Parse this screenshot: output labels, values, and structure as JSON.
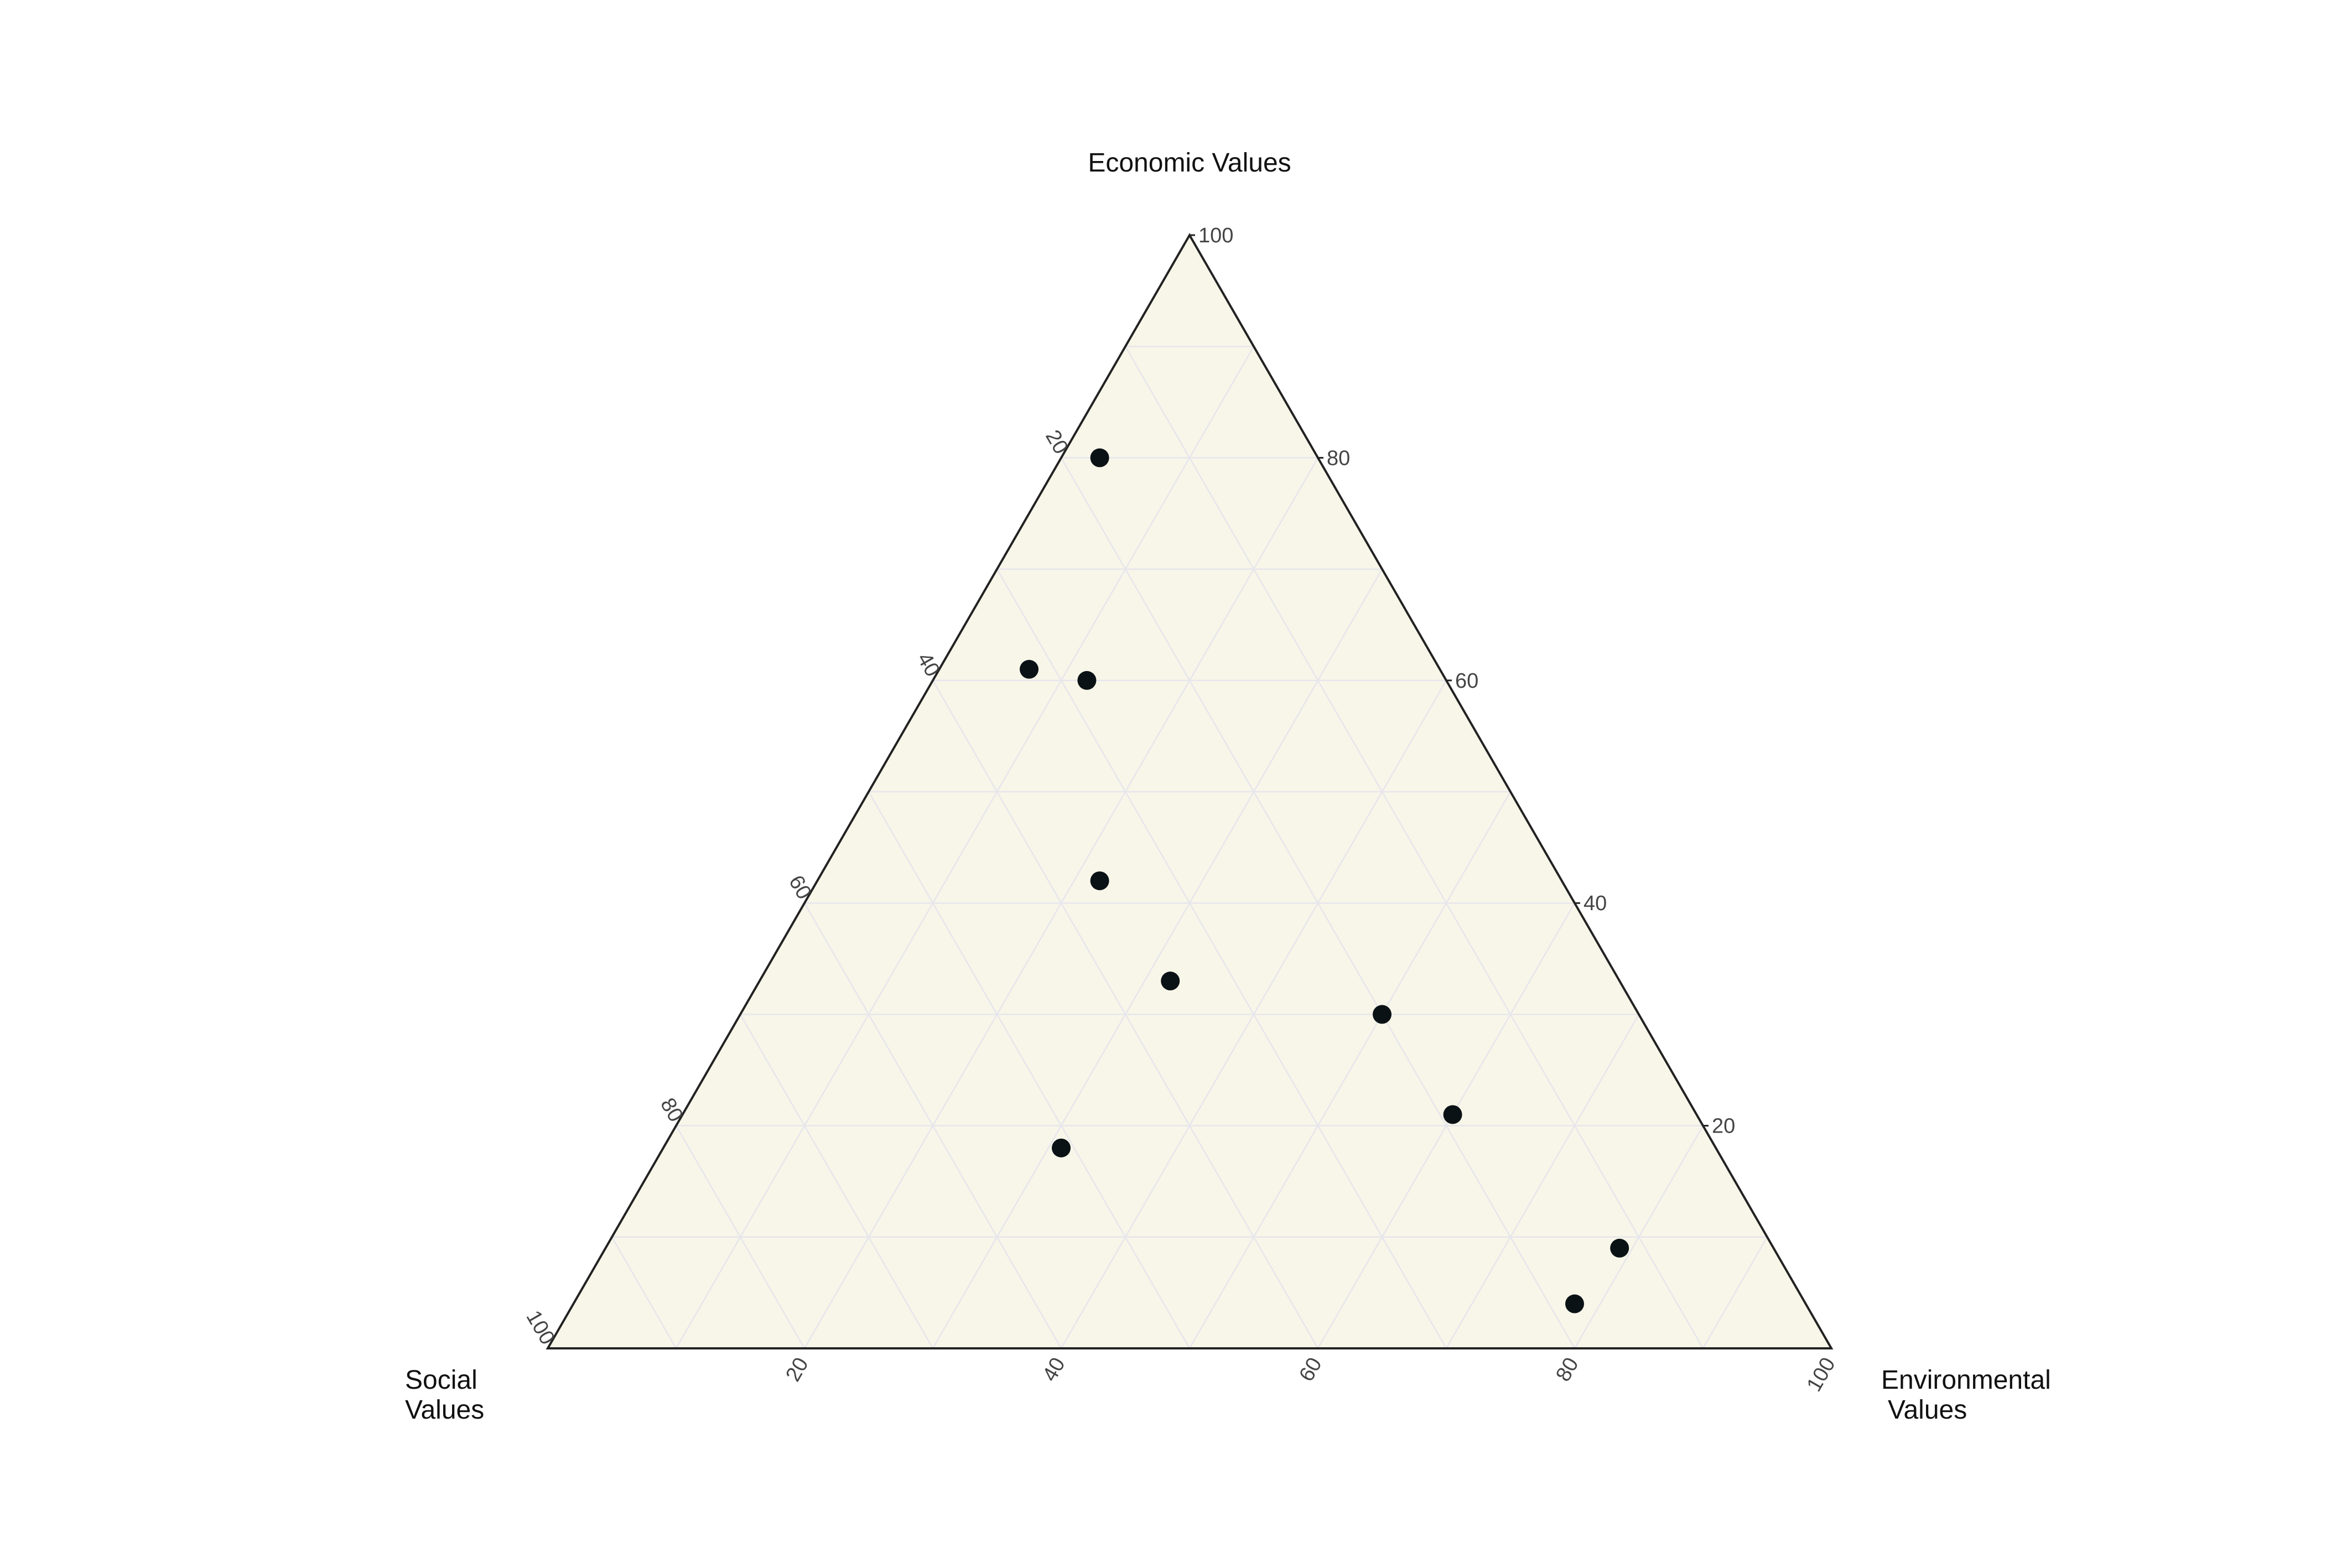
{
  "chart_data": {
    "type": "scatter",
    "subtype": "ternary",
    "axes": {
      "top": {
        "title": "Economic Values"
      },
      "left": {
        "title": [
          "Social",
          "Values"
        ]
      },
      "right": {
        "title": [
          "Environmental",
          "Values"
        ]
      }
    },
    "ticks": [
      "20",
      "40",
      "60",
      "80",
      "100"
    ],
    "grid": true,
    "colors": {
      "background": "#f8f6e9",
      "grid": "#e6e6ec",
      "frame": "#222222",
      "marker": "#0b1215"
    },
    "points": [
      {
        "economic": 80,
        "social": 17,
        "environmental": 3
      },
      {
        "economic": 60,
        "social": 28,
        "environmental": 12
      },
      {
        "economic": 61,
        "social": 32,
        "environmental": 7
      },
      {
        "economic": 42,
        "social": 36,
        "environmental": 22
      },
      {
        "economic": 33,
        "social": 35,
        "environmental": 32
      },
      {
        "economic": 30,
        "social": 20,
        "environmental": 50
      },
      {
        "economic": 21,
        "social": 19,
        "environmental": 60
      },
      {
        "economic": 18,
        "social": 51,
        "environmental": 31
      },
      {
        "economic": 9,
        "social": 12,
        "environmental": 79
      },
      {
        "economic": 4,
        "social": 18,
        "environmental": 78
      }
    ]
  }
}
